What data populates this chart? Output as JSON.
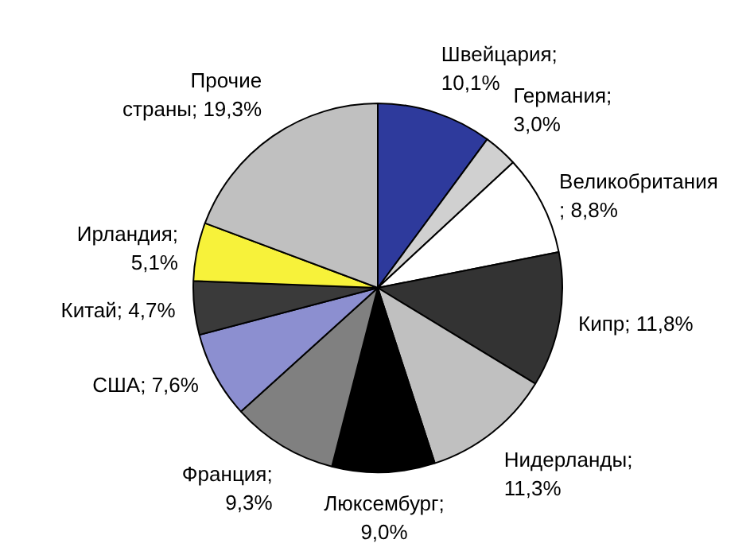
{
  "chart_data": {
    "type": "pie",
    "categories": [
      "Швейцария",
      "Германия",
      "Великобритания",
      "Кипр",
      "Нидерланды",
      "Люксембург",
      "Франция",
      "США",
      "Китай",
      "Ирландия",
      "Прочие страны"
    ],
    "values": [
      10.1,
      3.0,
      8.8,
      11.8,
      11.3,
      9.0,
      9.3,
      7.6,
      4.7,
      5.1,
      19.3
    ],
    "value_labels": [
      "; 10,1%",
      "; 3,0%",
      "; 8,8%",
      "; 11,8%",
      "; 11,3%",
      "; 9,0%",
      "; 9,3%",
      "; 7,6%",
      "; 4,7%",
      "; 5,1%",
      "; 19,3%"
    ],
    "colors": [
      "#2e3a9c",
      "#d0d0d0",
      "#ffffff",
      "#333333",
      "#c0c0c0",
      "#000000",
      "#808080",
      "#8c8fd0",
      "#3a3a3a",
      "#f7f23a",
      "#c0c0c0"
    ]
  }
}
